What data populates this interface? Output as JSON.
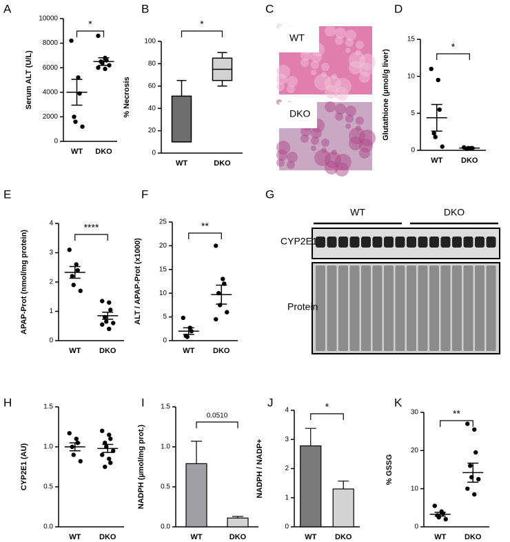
{
  "chart_data": [
    {
      "type": "dot",
      "panel": "A",
      "ylabel": "Serum ALT (U/L)",
      "categories": [
        "WT",
        "DKO"
      ],
      "points": [
        [
          8200,
          5200,
          3900,
          2000,
          1600,
          1200
        ],
        [
          8600,
          6800,
          6600,
          6500,
          6400,
          6200,
          6000,
          5900
        ]
      ],
      "mean": [
        4000,
        6500
      ],
      "sem": [
        1050,
        310
      ],
      "color": "#000000",
      "ylim": [
        0,
        10000
      ],
      "yticks": [
        0,
        2000,
        4000,
        6000,
        8000,
        10000
      ],
      "significance": "*"
    },
    {
      "type": "box",
      "panel": "B",
      "ylabel": "% Necrosis",
      "categories": [
        "WT",
        "DKO"
      ],
      "min": [
        10,
        60
      ],
      "q1": [
        10,
        65
      ],
      "median": [
        10,
        75
      ],
      "q3": [
        51,
        85
      ],
      "max": [
        65,
        90
      ],
      "colors": [
        "#6e6e6e",
        "#d3d3d3"
      ],
      "ylim": [
        0,
        100
      ],
      "yticks": [
        0,
        20,
        40,
        60,
        80,
        100
      ],
      "significance": "*"
    },
    {
      "type": "image",
      "panel": "C",
      "labels": [
        "WT",
        "DKO"
      ]
    },
    {
      "type": "dot",
      "panel": "D",
      "ylabel": "Glutathione (µmol/g liver)",
      "categories": [
        "WT",
        "DKO"
      ],
      "points": [
        [
          11,
          9.5,
          5.5,
          2.3,
          1.8,
          0.5
        ],
        [
          0.4,
          0.3,
          0.3,
          0.2,
          0.3
        ]
      ],
      "mean": [
        4.4,
        0.3
      ],
      "sem": [
        1.8,
        0.05
      ],
      "color": "#000000",
      "ylim": [
        0,
        15
      ],
      "yticks": [
        0,
        5,
        10,
        15
      ],
      "significance": "*"
    },
    {
      "type": "dot",
      "panel": "E",
      "ylabel": "APAP-Prot (nmol/mg protein)",
      "categories": [
        "WT",
        "DKO"
      ],
      "points": [
        [
          3.1,
          2.6,
          2.4,
          2.2,
          1.9,
          1.7
        ],
        [
          1.35,
          1.3,
          1.05,
          0.8,
          0.65,
          0.6,
          0.55,
          0.4
        ]
      ],
      "mean": [
        2.33,
        0.85
      ],
      "sem": [
        0.2,
        0.12
      ],
      "color": "#000000",
      "ylim": [
        0,
        4
      ],
      "yticks": [
        0,
        1,
        2,
        3,
        4
      ],
      "significance": "****"
    },
    {
      "type": "dot",
      "panel": "F",
      "ylabel": "ALT / APAP-Prot (x1000)",
      "categories": [
        "WT",
        "DKO"
      ],
      "points": [
        [
          4.8,
          2.7,
          2.0,
          1.0,
          0.8
        ],
        [
          20,
          13,
          12,
          10,
          7.5,
          6,
          4.5
        ]
      ],
      "mean": [
        2.0,
        9.7
      ],
      "sem": [
        0.7,
        2.0
      ],
      "color": "#000000",
      "ylim": [
        0,
        25
      ],
      "yticks": [
        0,
        5,
        10,
        15,
        20,
        25
      ],
      "significance": "**"
    },
    {
      "type": "blot",
      "panel": "G",
      "groups": [
        "WT",
        "DKO"
      ],
      "rows": [
        "CYP2E1",
        "Protein"
      ]
    },
    {
      "type": "dot",
      "panel": "H",
      "ylabel": "CYP2E1 (AU)",
      "categories": [
        "WT",
        "DKO"
      ],
      "points": [
        [
          1.17,
          1.1,
          1.05,
          1.0,
          0.9,
          0.82
        ],
        [
          1.2,
          1.15,
          1.1,
          1.05,
          1.0,
          0.95,
          0.9,
          0.85,
          0.8,
          0.75
        ]
      ],
      "mean": [
        1.0,
        0.98
      ],
      "sem": [
        0.05,
        0.05
      ],
      "color": "#000000",
      "ylim": [
        0,
        1.5
      ],
      "yticks": [
        {
          "value": 0,
          "label": "0.0"
        },
        0.5,
        {
          "value": 1,
          "label": "1.0"
        },
        1.5
      ]
    },
    {
      "type": "bar",
      "panel": "I",
      "ylabel": "NADPH (µmol/mg prot.)",
      "categories": [
        "WT",
        "DKO"
      ],
      "values": [
        0.79,
        0.11
      ],
      "errors": [
        0.28,
        0.02
      ],
      "colors": [
        "#a0a0a4",
        "#d3d3d3"
      ],
      "ylim": [
        0,
        1.5
      ],
      "yticks": [
        {
          "value": 0,
          "label": "0.0"
        },
        0.5,
        {
          "value": 1,
          "label": "1.0"
        },
        1.5
      ],
      "significance": "0.0510"
    },
    {
      "type": "bar",
      "panel": "J",
      "ylabel": "NADPH / NADP+",
      "categories": [
        "WT",
        "DKO"
      ],
      "values": [
        2.78,
        1.3
      ],
      "errors": [
        0.6,
        0.27
      ],
      "colors": [
        "#7a7a7a",
        "#d3d3d3"
      ],
      "ylim": [
        0,
        4
      ],
      "yticks": [
        0,
        1,
        2,
        3,
        4
      ],
      "significance": "*"
    },
    {
      "type": "dot",
      "panel": "K",
      "ylabel": "% GSSG",
      "categories": [
        "WT",
        "DKO"
      ],
      "points": [
        [
          5.5,
          4,
          3.5,
          3,
          2.5,
          2
        ],
        [
          27,
          25.5,
          19.5,
          16,
          13,
          12.5,
          10,
          8.5
        ]
      ],
      "mean": [
        3.3,
        14.2
      ],
      "sem": [
        0.5,
        2.5
      ],
      "color": "#000000",
      "ylim": [
        0,
        30
      ],
      "yticks": [
        0,
        10,
        20,
        30
      ],
      "significance": "**"
    }
  ]
}
